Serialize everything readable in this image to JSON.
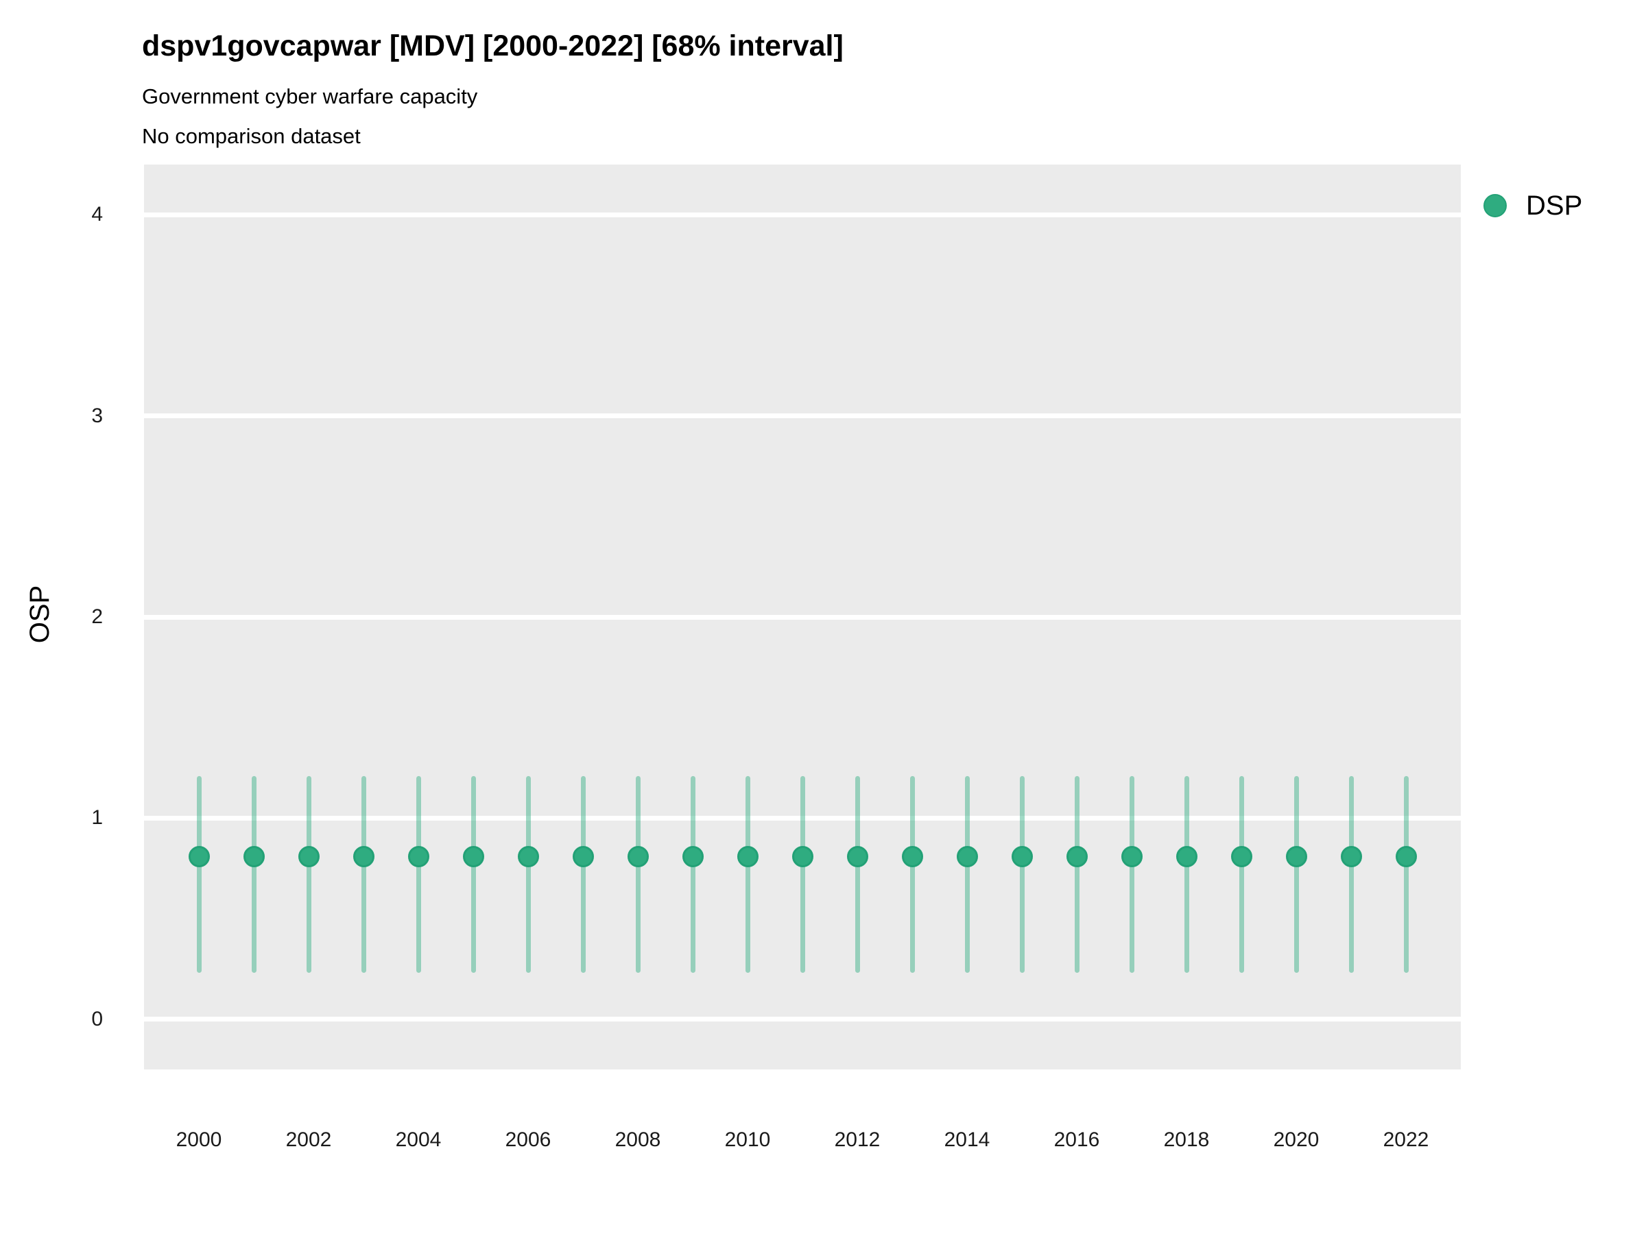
{
  "header": {
    "title": "dspv1govcapwar [MDV] [2000-2022] [68% interval]",
    "subtitle1": "Government cyber warfare capacity",
    "subtitle2": "No comparison dataset"
  },
  "axes": {
    "y_label": "OSP",
    "y_ticks": [
      0,
      1,
      2,
      3,
      4
    ],
    "x_tick_years": [
      2000,
      2002,
      2004,
      2006,
      2008,
      2010,
      2012,
      2014,
      2016,
      2018,
      2020,
      2022
    ]
  },
  "legend": {
    "items": [
      {
        "label": "DSP",
        "color": "#2FAC80",
        "border_color": "#23A176"
      }
    ]
  },
  "colors": {
    "panel_background": "#EBEBEB",
    "gridline": "#FFFFFF",
    "point_fill": "#2FAC80",
    "point_border": "#23A176",
    "errorbar": "rgba(47,172,128,0.45)",
    "text": "#000000"
  },
  "chart_data": {
    "type": "scatter",
    "title": "dspv1govcapwar [MDV] [2000-2022] [68% interval]",
    "subtitle": [
      "Government cyber warfare capacity",
      "No comparison dataset"
    ],
    "xlabel": "",
    "ylabel": "OSP",
    "xlim": [
      1999,
      2023
    ],
    "ylim": [
      -0.25,
      4.25
    ],
    "grid": "horizontal-major-only",
    "legend_position": "right",
    "interval": "68%",
    "x": [
      2000,
      2001,
      2002,
      2003,
      2004,
      2005,
      2006,
      2007,
      2008,
      2009,
      2010,
      2011,
      2012,
      2013,
      2014,
      2015,
      2016,
      2017,
      2018,
      2019,
      2020,
      2021,
      2022
    ],
    "series": [
      {
        "name": "DSP",
        "point_estimates": [
          0.81,
          0.81,
          0.81,
          0.81,
          0.81,
          0.81,
          0.81,
          0.81,
          0.81,
          0.81,
          0.81,
          0.81,
          0.81,
          0.81,
          0.81,
          0.81,
          0.81,
          0.81,
          0.81,
          0.81,
          0.81,
          0.81,
          0.81
        ],
        "interval_68_low": [
          0.23,
          0.23,
          0.23,
          0.23,
          0.23,
          0.23,
          0.23,
          0.23,
          0.23,
          0.23,
          0.23,
          0.23,
          0.23,
          0.23,
          0.23,
          0.23,
          0.23,
          0.23,
          0.23,
          0.23,
          0.23,
          0.23,
          0.23
        ],
        "interval_68_high": [
          1.21,
          1.21,
          1.21,
          1.21,
          1.21,
          1.21,
          1.21,
          1.21,
          1.21,
          1.21,
          1.21,
          1.21,
          1.21,
          1.21,
          1.21,
          1.21,
          1.21,
          1.21,
          1.21,
          1.21,
          1.21,
          1.21,
          1.21
        ]
      }
    ]
  }
}
